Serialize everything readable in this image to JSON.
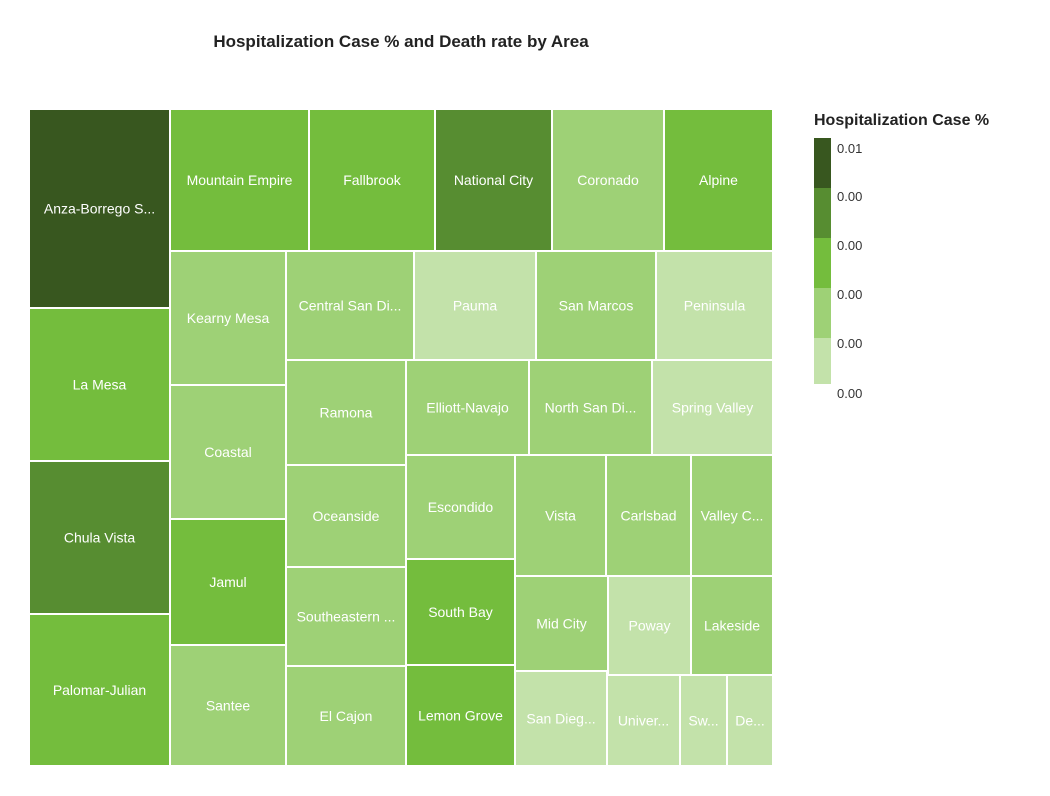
{
  "chart_data": {
    "type": "treemap",
    "title": "Hospitalization Case %  and Death rate by Area",
    "legend": {
      "title": "Hospitalization Case %",
      "position": "right",
      "bins": [
        {
          "label": "0.01",
          "color": "#38571f"
        },
        {
          "label": "0.00",
          "color": "#578d31"
        },
        {
          "label": "0.00",
          "color": "#74bd3d"
        },
        {
          "label": "0.00",
          "color": "#9ed176"
        },
        {
          "label": "0.00",
          "color": "#c3e2aa"
        }
      ],
      "bottom_label": "0.00"
    },
    "tiles": [
      {
        "label": "Anza-Borrego S...",
        "level": 0
      },
      {
        "label": "La Mesa",
        "level": 2
      },
      {
        "label": "Chula Vista",
        "level": 1
      },
      {
        "label": "Palomar-Julian",
        "level": 2
      },
      {
        "label": "Mountain Empire",
        "level": 2
      },
      {
        "label": "Fallbrook",
        "level": 2
      },
      {
        "label": "National City",
        "level": 1
      },
      {
        "label": "Coronado",
        "level": 3
      },
      {
        "label": "Alpine",
        "level": 2
      },
      {
        "label": "Kearny Mesa",
        "level": 3
      },
      {
        "label": "Coastal",
        "level": 3
      },
      {
        "label": "Jamul",
        "level": 2
      },
      {
        "label": "Santee",
        "level": 3
      },
      {
        "label": "Central San Di...",
        "level": 3
      },
      {
        "label": "Pauma",
        "level": 4
      },
      {
        "label": "San Marcos",
        "level": 3
      },
      {
        "label": "Peninsula",
        "level": 4
      },
      {
        "label": "Ramona",
        "level": 3
      },
      {
        "label": "Elliott-Navajo",
        "level": 3
      },
      {
        "label": "North San Di...",
        "level": 3
      },
      {
        "label": "Spring Valley",
        "level": 4
      },
      {
        "label": "Oceanside",
        "level": 3
      },
      {
        "label": "Escondido",
        "level": 3
      },
      {
        "label": "Southeastern ...",
        "level": 3
      },
      {
        "label": "South Bay",
        "level": 2
      },
      {
        "label": "El Cajon",
        "level": 3
      },
      {
        "label": "Lemon Grove",
        "level": 2
      },
      {
        "label": "Vista",
        "level": 3
      },
      {
        "label": "Carlsbad",
        "level": 3
      },
      {
        "label": "Valley C...",
        "level": 3
      },
      {
        "label": "Mid City",
        "level": 3
      },
      {
        "label": "Poway",
        "level": 4
      },
      {
        "label": "Lakeside",
        "level": 3
      },
      {
        "label": "San Dieg...",
        "level": 4
      },
      {
        "label": "Univer...",
        "level": 4
      },
      {
        "label": "Sw...",
        "level": 4
      },
      {
        "label": "De...",
        "level": 4
      }
    ]
  }
}
